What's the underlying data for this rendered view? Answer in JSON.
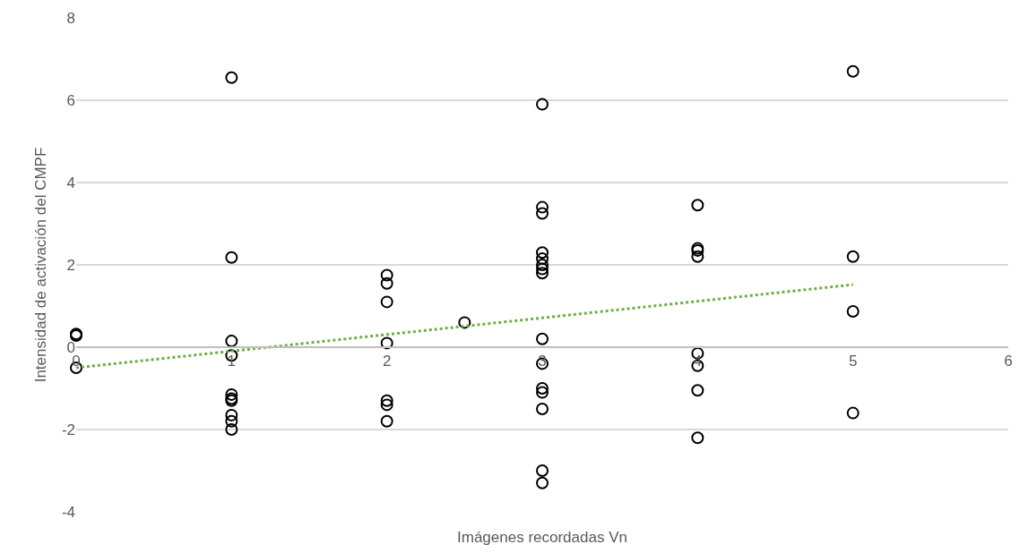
{
  "chart_data": {
    "type": "scatter",
    "xlabel": "Imágenes recordadas Vn",
    "ylabel": "Intensidad de activación del CMPF",
    "series": [
      {
        "color": "#000000",
        "marker": "circle",
        "x": [
          0,
          0,
          0,
          1,
          1,
          1,
          1,
          1,
          1,
          1,
          1,
          1,
          1,
          2,
          2,
          2,
          2,
          2,
          2,
          2,
          2.5,
          3,
          3,
          3,
          3,
          3,
          3,
          3,
          3,
          3,
          3,
          3,
          3,
          3,
          3,
          3,
          4,
          4,
          4,
          4,
          4,
          4,
          4,
          4,
          5,
          5,
          5,
          5
        ],
        "values": [
          0.32,
          0.28,
          -0.5,
          6.55,
          2.18,
          0.15,
          -0.2,
          -1.15,
          -1.25,
          -1.3,
          -1.65,
          -1.8,
          -2.0,
          1.75,
          1.55,
          1.1,
          0.1,
          -1.3,
          -1.4,
          -1.8,
          0.6,
          5.9,
          3.4,
          3.25,
          2.3,
          2.15,
          2.0,
          1.9,
          1.8,
          0.2,
          -0.4,
          -1.0,
          -1.1,
          -1.5,
          -3.0,
          -3.3,
          3.45,
          2.4,
          2.35,
          2.2,
          -0.15,
          -0.45,
          -1.05,
          -2.2,
          6.7,
          2.2,
          0.87,
          -1.6
        ]
      },
      {
        "type": "line",
        "color": "#70ad47",
        "line_style": "dotted",
        "marker": "none",
        "x": [
          0,
          5
        ],
        "values": [
          -0.5,
          1.52
        ]
      }
    ],
    "xlim": [
      0,
      6
    ],
    "xticks": [
      0,
      1,
      2,
      3,
      4,
      5,
      6
    ],
    "ylim": [
      -4,
      8
    ],
    "yticks": [
      -4,
      -2,
      0,
      2,
      4,
      6,
      8
    ],
    "grid": "y"
  }
}
